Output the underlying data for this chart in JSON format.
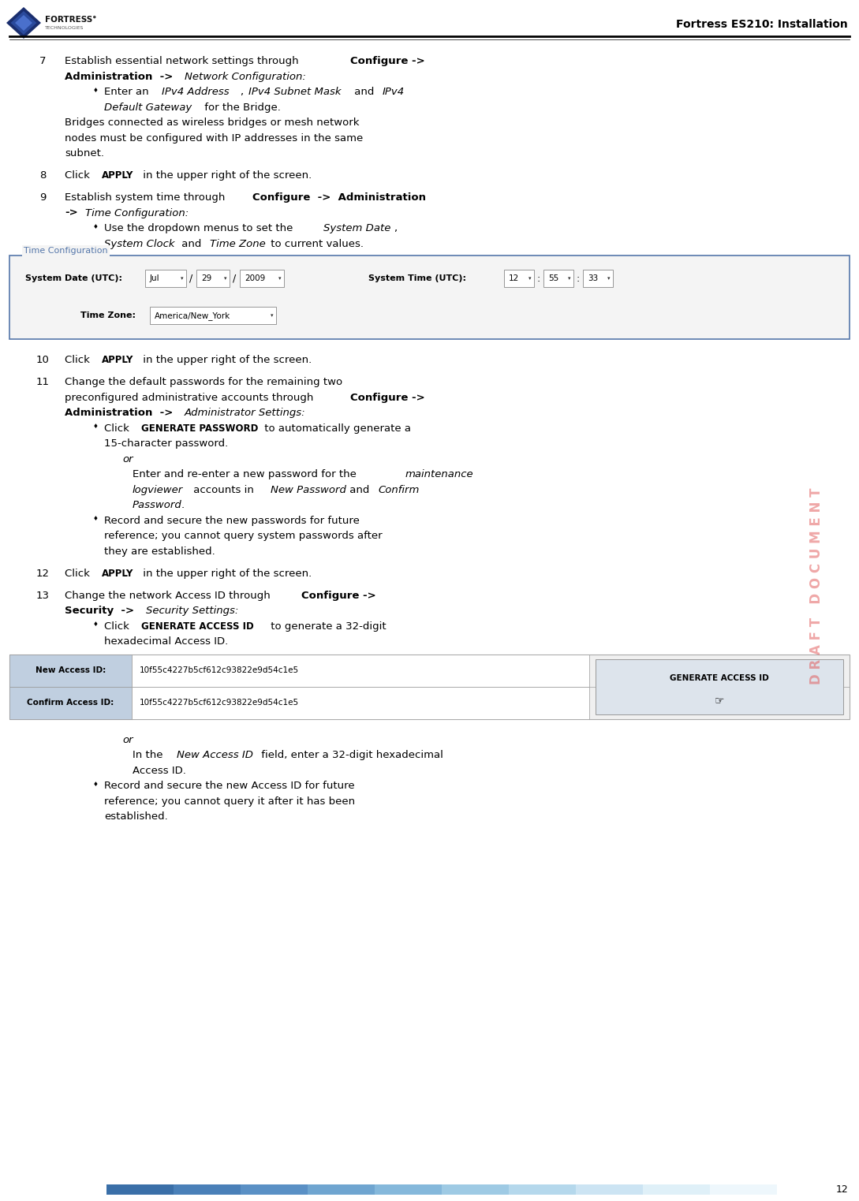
{
  "page_width": 10.89,
  "page_height": 15.23,
  "bg_color": "#ffffff",
  "header_title": "Fortress ES210: Installation",
  "header_line_color": "#000000",
  "footer_bar_colors": [
    "#3a6fa8",
    "#4a80b8",
    "#5a90c5",
    "#6fa5d0",
    "#85b8db",
    "#9ecae4",
    "#b5d8ec",
    "#cce4f3",
    "#dff0f8",
    "#eef7fc"
  ],
  "footer_page_num": "12",
  "draft_text": "D R A F T   D O C U M E N T",
  "draft_color": "#e05050",
  "draft_alpha": 0.5,
  "logo_diamond_color": "#1a3a7a"
}
